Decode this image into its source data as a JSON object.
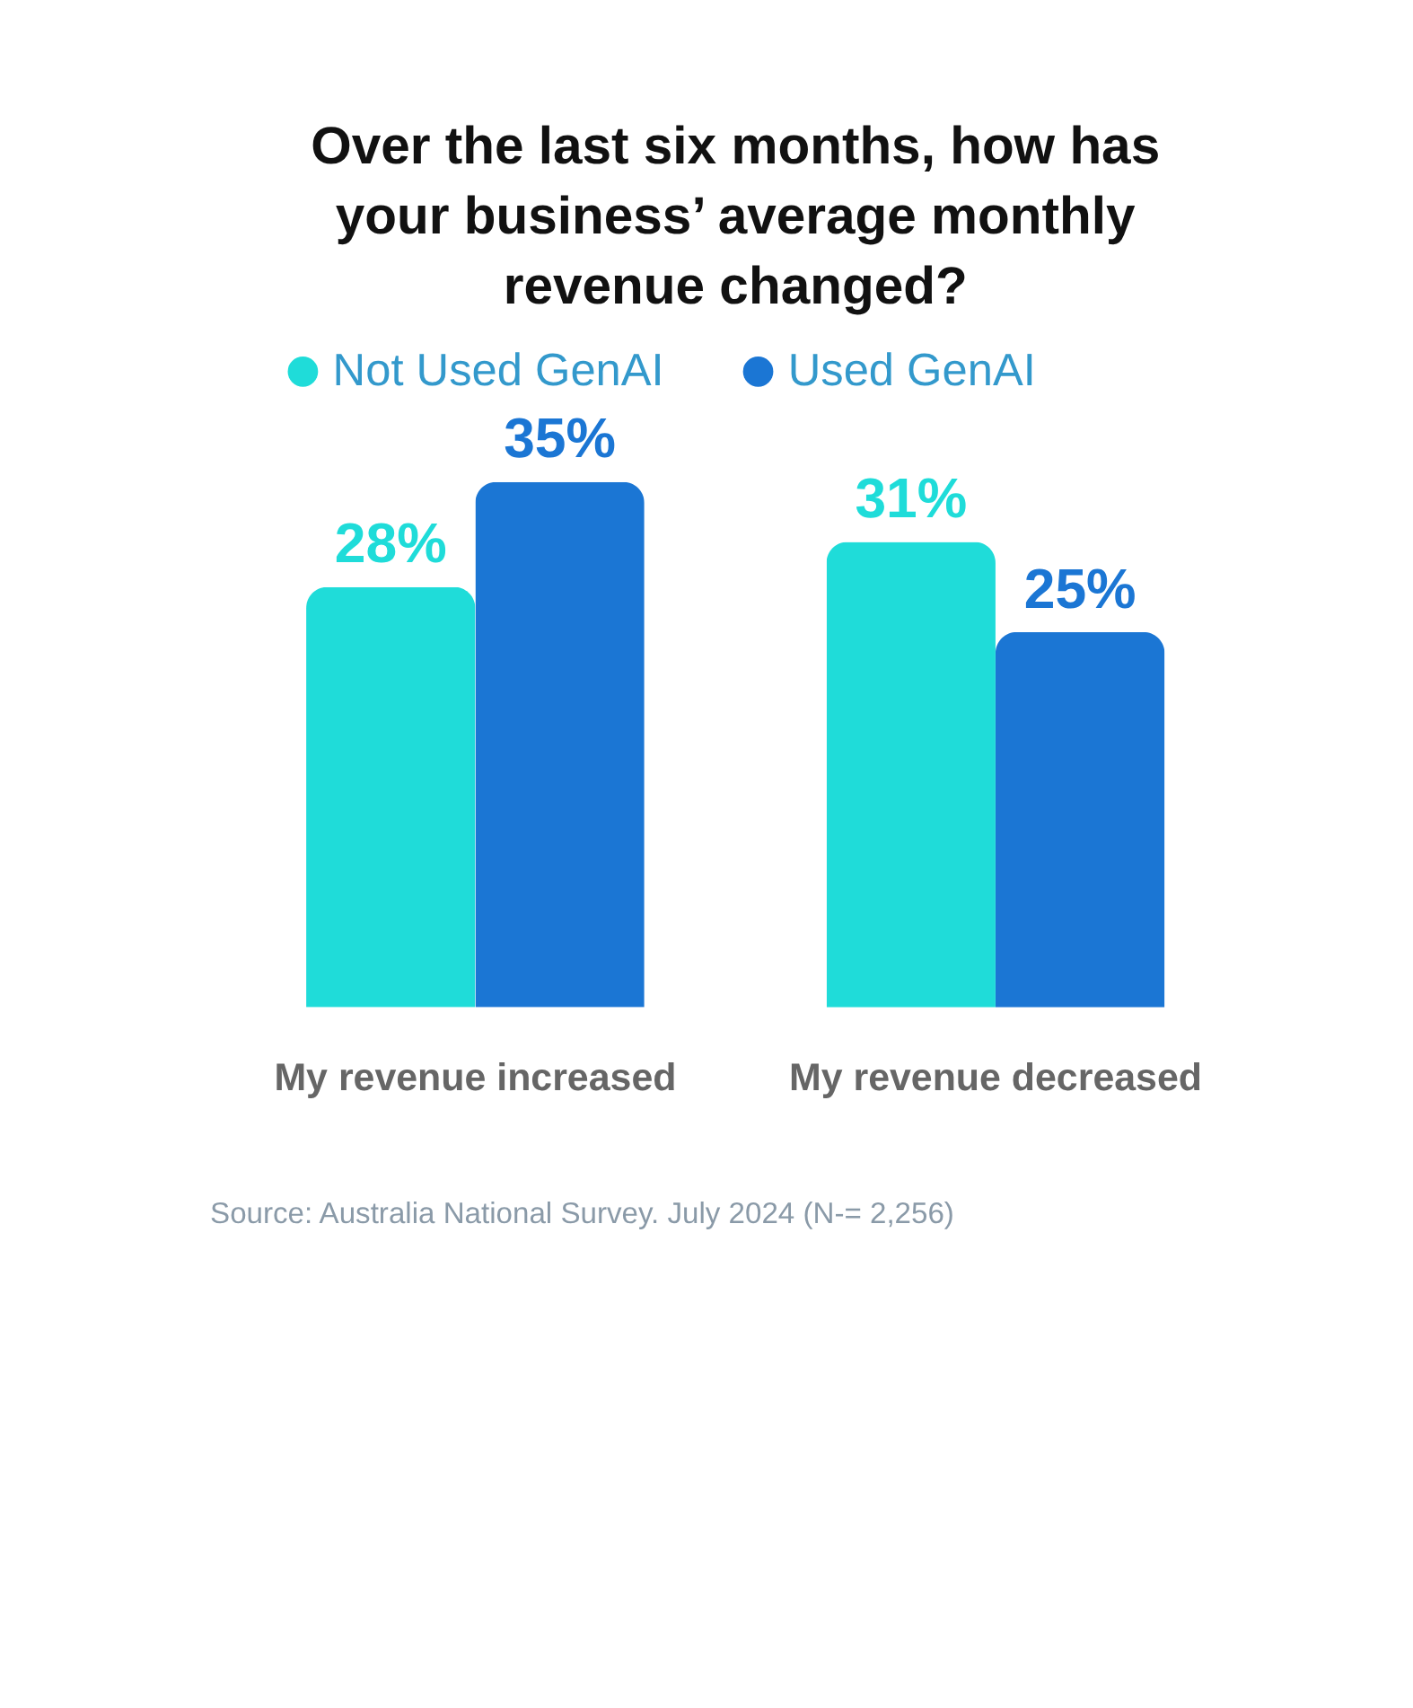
{
  "chart_data": {
    "type": "bar",
    "title": "Over the last six months, how has your business’ average monthly revenue changed?",
    "categories": [
      "My revenue increased",
      "My revenue decreased"
    ],
    "series": [
      {
        "name": "Not Used GenAI",
        "color": "#1fdcd9",
        "values": [
          28,
          31
        ],
        "value_labels": [
          "28%",
          "31%"
        ]
      },
      {
        "name": "Used GenAI",
        "color": "#1b76d4",
        "values": [
          35,
          25
        ],
        "value_labels": [
          "35%",
          "25%"
        ]
      }
    ],
    "legend": "top",
    "grid": false,
    "annotations": [
      "Source: Australia National Survey. July 2024 (N-= 2,256)"
    ]
  }
}
